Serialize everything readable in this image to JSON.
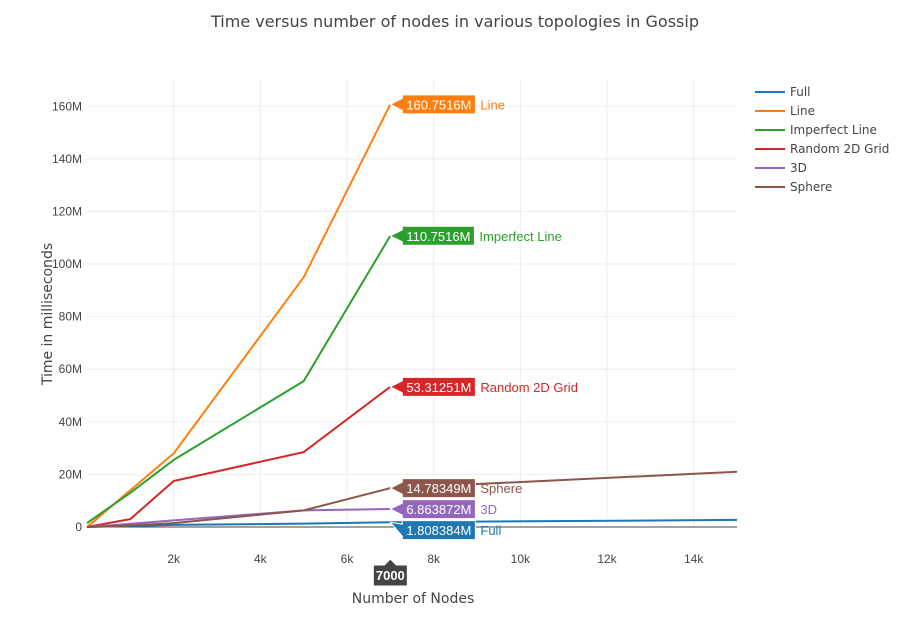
{
  "chart_data": {
    "type": "line",
    "title": "Time versus number of nodes in various topologies in Gossip",
    "xlabel": "Number of Nodes",
    "ylabel": "Time in milliseconds",
    "xlim": [
      0,
      15000
    ],
    "ylim": [
      0,
      170000000
    ],
    "x_ticks": [
      {
        "value": 2000,
        "label": "2k"
      },
      {
        "value": 4000,
        "label": "4k"
      },
      {
        "value": 6000,
        "label": "6k"
      },
      {
        "value": 8000,
        "label": "8k"
      },
      {
        "value": 10000,
        "label": "10k"
      },
      {
        "value": 12000,
        "label": "12k"
      },
      {
        "value": 14000,
        "label": "14k"
      }
    ],
    "y_ticks": [
      {
        "value": 0,
        "label": "0"
      },
      {
        "value": 20000000,
        "label": "20M"
      },
      {
        "value": 40000000,
        "label": "40M"
      },
      {
        "value": 60000000,
        "label": "60M"
      },
      {
        "value": 80000000,
        "label": "80M"
      },
      {
        "value": 100000000,
        "label": "100M"
      },
      {
        "value": 120000000,
        "label": "120M"
      },
      {
        "value": 140000000,
        "label": "140M"
      },
      {
        "value": 160000000,
        "label": "160M"
      }
    ],
    "grid": true,
    "legend": "right",
    "hover_x": {
      "value": 7000,
      "label": "7000"
    },
    "series": [
      {
        "name": "Full",
        "color": "#1f77b4",
        "hover_label": "1.808384M",
        "x": [
          0,
          1000,
          2000,
          5000,
          7000,
          15000
        ],
        "y": [
          0,
          400000,
          800000,
          1300000,
          1808384,
          2700000
        ]
      },
      {
        "name": "Line",
        "color": "#ff7f0e",
        "hover_label": "160.7516M",
        "x": [
          0,
          1000,
          2000,
          5000,
          7000
        ],
        "y": [
          0,
          14000000,
          28000000,
          95000000,
          160751600
        ]
      },
      {
        "name": "Imperfect Line",
        "color": "#2ca02c",
        "hover_label": "110.7516M",
        "x": [
          0,
          1000,
          2000,
          5000,
          7000
        ],
        "y": [
          1500000,
          13000000,
          25500000,
          55500000,
          110751600
        ]
      },
      {
        "name": "Random 2D Grid",
        "color": "#d62728",
        "hover_label": "53.31251M",
        "x": [
          0,
          1000,
          2000,
          5000,
          7000
        ],
        "y": [
          0,
          3000000,
          17500000,
          28500000,
          53312510
        ]
      },
      {
        "name": "3D",
        "color": "#9467bd",
        "hover_label": "6.863872M",
        "x": [
          0,
          1000,
          2000,
          5000,
          7000
        ],
        "y": [
          0,
          1200000,
          2500000,
          6300000,
          6863872
        ]
      },
      {
        "name": "Sphere",
        "color": "#8c564b",
        "hover_label": "14.78349M",
        "x": [
          0,
          1000,
          2000,
          5000,
          7000,
          15000
        ],
        "y": [
          0,
          600000,
          1500000,
          6300000,
          14783490,
          21000000
        ]
      }
    ]
  }
}
